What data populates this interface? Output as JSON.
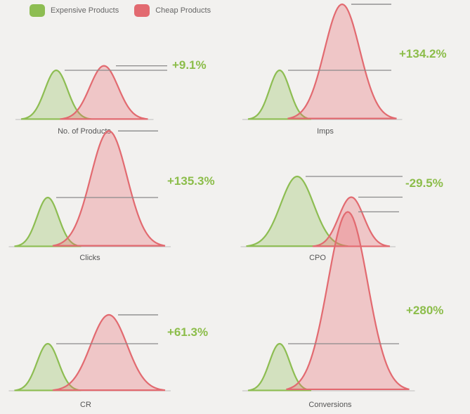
{
  "legend": {
    "expensive": {
      "label": "Expensive Products",
      "color": "#8dbd52"
    },
    "cheap": {
      "label": "Cheap Products",
      "color": "#e26a70"
    }
  },
  "chart_data": [
    {
      "type": "area",
      "title": "No. of Products",
      "annotation": "+9.1%",
      "series": [
        {
          "name": "Expensive Products",
          "peak": 1.0
        },
        {
          "name": "Cheap Products",
          "peak": 1.091
        }
      ]
    },
    {
      "type": "area",
      "title": "Imps",
      "annotation": "+134.2%",
      "series": [
        {
          "name": "Expensive Products",
          "peak": 1.0
        },
        {
          "name": "Cheap Products",
          "peak": 2.342
        }
      ]
    },
    {
      "type": "area",
      "title": "Clicks",
      "annotation": "+135.3%",
      "series": [
        {
          "name": "Expensive Products",
          "peak": 1.0
        },
        {
          "name": "Cheap Products",
          "peak": 2.353
        }
      ]
    },
    {
      "type": "area",
      "title": "CPO",
      "annotation": "-29.5%",
      "series": [
        {
          "name": "Expensive Products",
          "peak": 1.0
        },
        {
          "name": "Cheap Products",
          "peak": 0.705
        }
      ]
    },
    {
      "type": "area",
      "title": "CR",
      "annotation": "+61.3%",
      "series": [
        {
          "name": "Expensive Products",
          "peak": 1.0
        },
        {
          "name": "Cheap Products",
          "peak": 1.613
        }
      ]
    },
    {
      "type": "area",
      "title": "Conversions",
      "annotation": "+280%",
      "series": [
        {
          "name": "Expensive Products",
          "peak": 1.0
        },
        {
          "name": "Cheap Products",
          "peak": 3.8
        }
      ]
    }
  ]
}
